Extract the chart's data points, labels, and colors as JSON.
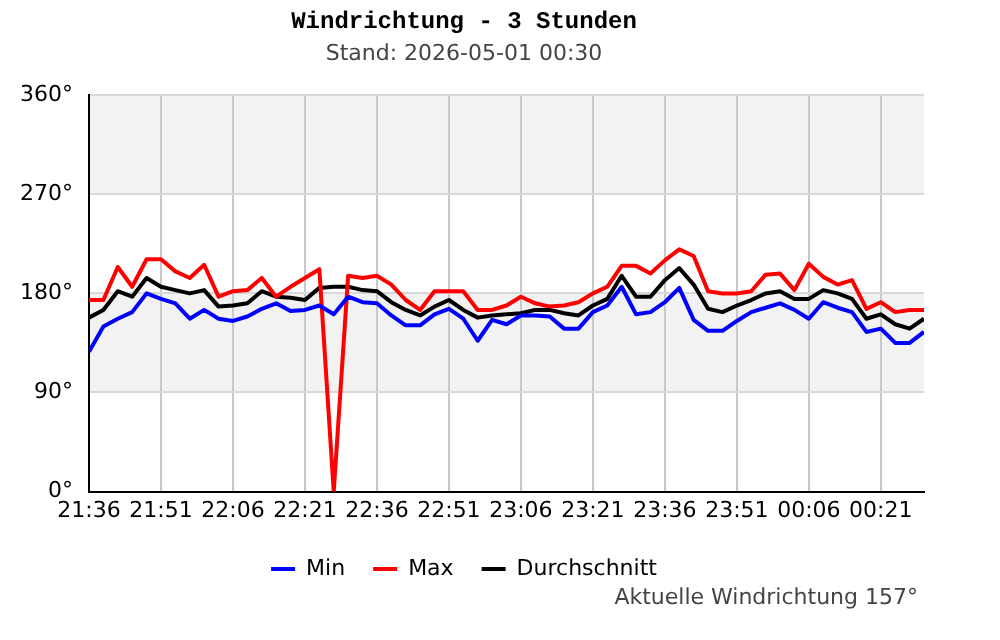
{
  "chart_data": {
    "type": "line",
    "title": "Windrichtung - 3 Stunden",
    "subtitle": "Stand: 2026-05-01 00:30",
    "x": [
      "2026-04-30T21:36",
      "2026-04-30T21:39",
      "2026-04-30T21:42",
      "2026-04-30T21:45",
      "2026-04-30T21:48",
      "2026-04-30T21:51",
      "2026-04-30T21:54",
      "2026-04-30T21:57",
      "2026-04-30T22:00",
      "2026-04-30T22:03",
      "2026-04-30T22:06",
      "2026-04-30T22:09",
      "2026-04-30T22:12",
      "2026-04-30T22:15",
      "2026-04-30T22:18",
      "2026-04-30T22:21",
      "2026-04-30T22:24",
      "2026-04-30T22:27",
      "2026-04-30T22:30",
      "2026-04-30T22:33",
      "2026-04-30T22:36",
      "2026-04-30T22:39",
      "2026-04-30T22:42",
      "2026-04-30T22:45",
      "2026-04-30T22:48",
      "2026-04-30T22:51",
      "2026-04-30T22:54",
      "2026-04-30T22:57",
      "2026-04-30T23:00",
      "2026-04-30T23:03",
      "2026-04-30T23:06",
      "2026-04-30T23:09",
      "2026-04-30T23:12",
      "2026-04-30T23:15",
      "2026-04-30T23:18",
      "2026-04-30T23:21",
      "2026-04-30T23:24",
      "2026-04-30T23:27",
      "2026-04-30T23:30",
      "2026-04-30T23:33",
      "2026-04-30T23:36",
      "2026-04-30T23:39",
      "2026-04-30T23:42",
      "2026-04-30T23:45",
      "2026-04-30T23:48",
      "2026-04-30T23:51",
      "2026-04-30T23:54",
      "2026-04-30T23:57",
      "2026-05-01T00:00",
      "2026-05-01T00:03",
      "2026-05-01T00:06",
      "2026-05-01T00:09",
      "2026-05-01T00:12",
      "2026-05-01T00:15",
      "2026-05-01T00:18",
      "2026-05-01T00:21",
      "2026-05-01T00:24",
      "2026-05-01T00:27",
      "2026-05-01T00:30"
    ],
    "series": [
      {
        "name": "Min",
        "color": "#0000ff",
        "values": [
          127,
          150,
          157,
          163,
          180,
          175,
          171,
          157,
          165,
          157,
          155,
          159,
          166,
          171,
          164,
          165,
          169,
          161,
          177,
          172,
          171,
          160,
          151,
          151,
          161,
          166,
          157,
          137,
          156,
          152,
          160,
          160,
          159,
          148,
          148,
          163,
          169,
          186,
          161,
          163,
          172,
          185,
          156,
          146,
          146,
          155,
          163,
          167,
          171,
          165,
          157,
          172,
          167,
          163,
          145,
          148,
          135,
          135,
          145
        ]
      },
      {
        "name": "Max",
        "color": "#ff0000",
        "values": [
          174,
          174,
          204,
          186,
          211,
          211,
          200,
          194,
          206,
          177,
          182,
          183,
          194,
          177,
          186,
          194,
          202,
          0,
          196,
          194,
          196,
          188,
          174,
          165,
          182,
          182,
          182,
          165,
          165,
          169,
          177,
          171,
          168,
          169,
          172,
          180,
          186,
          205,
          205,
          198,
          210,
          220,
          214,
          182,
          180,
          180,
          182,
          197,
          198,
          183,
          207,
          195,
          188,
          192,
          166,
          172,
          163,
          165,
          165
        ]
      },
      {
        "name": "Durchschnitt",
        "color": "#000000",
        "values": [
          158,
          165,
          182,
          177,
          194,
          186,
          183,
          180,
          183,
          168,
          169,
          171,
          182,
          177,
          176,
          174,
          185,
          186,
          186,
          183,
          182,
          172,
          165,
          160,
          168,
          174,
          165,
          158,
          160,
          161,
          162,
          165,
          165,
          162,
          160,
          169,
          175,
          196,
          177,
          177,
          192,
          203,
          188,
          166,
          163,
          169,
          174,
          180,
          182,
          175,
          175,
          183,
          180,
          175,
          157,
          161,
          152,
          148,
          157
        ]
      }
    ],
    "xlim": [
      "2026-04-30T21:36",
      "2026-05-01T00:30"
    ],
    "xticks": [
      {
        "value": "2026-04-30T21:36",
        "label": "21:36"
      },
      {
        "value": "2026-04-30T21:51",
        "label": "21:51"
      },
      {
        "value": "2026-04-30T22:06",
        "label": "22:06"
      },
      {
        "value": "2026-04-30T22:21",
        "label": "22:21"
      },
      {
        "value": "2026-04-30T22:36",
        "label": "22:36"
      },
      {
        "value": "2026-04-30T22:51",
        "label": "22:51"
      },
      {
        "value": "2026-04-30T23:06",
        "label": "23:06"
      },
      {
        "value": "2026-04-30T23:21",
        "label": "23:21"
      },
      {
        "value": "2026-04-30T23:36",
        "label": "23:36"
      },
      {
        "value": "2026-04-30T23:51",
        "label": "23:51"
      },
      {
        "value": "2026-05-01T00:06",
        "label": "00:06"
      },
      {
        "value": "2026-05-01T00:21",
        "label": "00:21"
      }
    ],
    "ylim": [
      0,
      360
    ],
    "yticks": [
      {
        "value": 0,
        "label": "0°"
      },
      {
        "value": 90,
        "label": "90°"
      },
      {
        "value": 180,
        "label": "180°"
      },
      {
        "value": 270,
        "label": "270°"
      },
      {
        "value": 360,
        "label": "360°"
      }
    ],
    "bands": [
      {
        "axis": "y",
        "from": 90,
        "to": 180,
        "color": "#f2f2f2"
      },
      {
        "axis": "y",
        "from": 270,
        "to": 360,
        "color": "#f2f2f2"
      }
    ],
    "grid": true,
    "legend": "bottom",
    "marker": "none",
    "line_style": "solid",
    "annotations": [
      "Aktuelle Windrichtung 157°"
    ]
  }
}
